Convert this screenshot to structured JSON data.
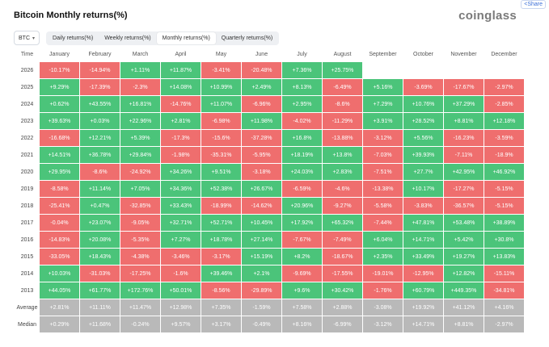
{
  "header": {
    "title": "Bitcoin Monthly returns(%)",
    "logo": "coinglass",
    "share_label": "Share"
  },
  "controls": {
    "asset": "BTC",
    "tabs": [
      "Daily returns(%)",
      "Weekly returns(%)",
      "Monthly returns(%)",
      "Quarterly returns(%)"
    ],
    "active_tab": 2
  },
  "colors": {
    "positive": "#4bc47a",
    "negative": "#ef6e6e",
    "summary": "#b9b9b9"
  },
  "table": {
    "columns": [
      "Time",
      "January",
      "February",
      "March",
      "April",
      "May",
      "June",
      "July",
      "August",
      "September",
      "October",
      "November",
      "December"
    ],
    "rows": [
      {
        "label": "2026",
        "cells": [
          "-10.17%",
          "-14.94%",
          "+1.11%",
          "+11.87%",
          "-3.41%",
          "-20.48%",
          "+7.36%",
          "+25.75%",
          "",
          "",
          "",
          ""
        ]
      },
      {
        "label": "2025",
        "cells": [
          "+9.29%",
          "-17.39%",
          "-2.3%",
          "+14.08%",
          "+10.99%",
          "+2.49%",
          "+8.13%",
          "-6.49%",
          "+5.16%",
          "-3.69%",
          "-17.67%",
          "-2.97%"
        ]
      },
      {
        "label": "2024",
        "cells": [
          "+0.62%",
          "+43.55%",
          "+16.81%",
          "-14.76%",
          "+11.07%",
          "-6.96%",
          "+2.95%",
          "-8.6%",
          "+7.29%",
          "+10.76%",
          "+37.29%",
          "-2.85%"
        ]
      },
      {
        "label": "2023",
        "cells": [
          "+39.63%",
          "+0.03%",
          "+22.96%",
          "+2.81%",
          "-6.98%",
          "+11.98%",
          "-4.02%",
          "-11.29%",
          "+3.91%",
          "+28.52%",
          "+8.81%",
          "+12.18%"
        ]
      },
      {
        "label": "2022",
        "cells": [
          "-16.68%",
          "+12.21%",
          "+5.39%",
          "-17.3%",
          "-15.6%",
          "-37.28%",
          "+16.8%",
          "-13.88%",
          "-3.12%",
          "+5.56%",
          "-16.23%",
          "-3.59%"
        ]
      },
      {
        "label": "2021",
        "cells": [
          "+14.51%",
          "+36.78%",
          "+29.84%",
          "-1.98%",
          "-35.31%",
          "-5.95%",
          "+18.19%",
          "+13.8%",
          "-7.03%",
          "+39.93%",
          "-7.11%",
          "-18.9%"
        ]
      },
      {
        "label": "2020",
        "cells": [
          "+29.95%",
          "-8.6%",
          "-24.92%",
          "+34.26%",
          "+9.51%",
          "-3.18%",
          "+24.03%",
          "+2.83%",
          "-7.51%",
          "+27.7%",
          "+42.95%",
          "+46.92%"
        ]
      },
      {
        "label": "2019",
        "cells": [
          "-8.58%",
          "+11.14%",
          "+7.05%",
          "+34.36%",
          "+52.38%",
          "+26.67%",
          "-6.59%",
          "-4.6%",
          "-13.38%",
          "+10.17%",
          "-17.27%",
          "-5.15%"
        ]
      },
      {
        "label": "2018",
        "cells": [
          "-25.41%",
          "+0.47%",
          "-32.85%",
          "+33.43%",
          "-18.99%",
          "-14.62%",
          "+20.96%",
          "-9.27%",
          "-5.58%",
          "-3.83%",
          "-36.57%",
          "-5.15%"
        ]
      },
      {
        "label": "2017",
        "cells": [
          "-0.04%",
          "+23.07%",
          "-9.05%",
          "+32.71%",
          "+52.71%",
          "+10.45%",
          "+17.92%",
          "+65.32%",
          "-7.44%",
          "+47.81%",
          "+53.48%",
          "+38.89%"
        ]
      },
      {
        "label": "2016",
        "cells": [
          "-14.83%",
          "+20.08%",
          "-5.35%",
          "+7.27%",
          "+18.78%",
          "+27.14%",
          "-7.67%",
          "-7.49%",
          "+6.04%",
          "+14.71%",
          "+5.42%",
          "+30.8%"
        ]
      },
      {
        "label": "2015",
        "cells": [
          "-33.05%",
          "+18.43%",
          "-4.38%",
          "-3.46%",
          "-3.17%",
          "+15.19%",
          "+8.2%",
          "-18.67%",
          "+2.35%",
          "+33.49%",
          "+19.27%",
          "+13.83%"
        ]
      },
      {
        "label": "2014",
        "cells": [
          "+10.03%",
          "-31.03%",
          "-17.25%",
          "-1.6%",
          "+39.46%",
          "+2.1%",
          "-9.69%",
          "-17.55%",
          "-19.01%",
          "-12.95%",
          "+12.82%",
          "-15.11%"
        ]
      },
      {
        "label": "2013",
        "cells": [
          "+44.05%",
          "+61.77%",
          "+172.76%",
          "+50.01%",
          "-8.56%",
          "-29.89%",
          "+9.6%",
          "+30.42%",
          "-1.76%",
          "+60.79%",
          "+449.35%",
          "-34.81%"
        ]
      }
    ],
    "summary_rows": [
      {
        "label": "Average",
        "cells": [
          "+2.81%",
          "+11.11%",
          "+11.47%",
          "+12.98%",
          "+7.35%",
          "-1.59%",
          "+7.58%",
          "+2.88%",
          "-3.08%",
          "+19.92%",
          "+41.12%",
          "+4.16%"
        ]
      },
      {
        "label": "Median",
        "cells": [
          "+0.29%",
          "+11.68%",
          "-0.24%",
          "+9.57%",
          "+3.17%",
          "-0.49%",
          "+8.16%",
          "-6.99%",
          "-3.12%",
          "+14.71%",
          "+8.81%",
          "-2.97%"
        ]
      }
    ]
  }
}
